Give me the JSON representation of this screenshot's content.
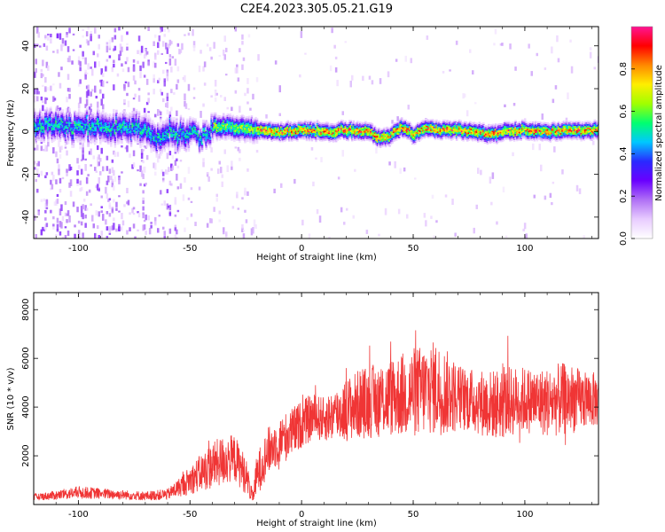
{
  "title": "C2E4.2023.305.05.21.G19",
  "colors": {
    "snr_line": "#f03535",
    "colormap": [
      "#ffffff",
      "#e8ccff",
      "#b070f5",
      "#6a00ff",
      "#2a2aff",
      "#00c8ff",
      "#00ff70",
      "#a0ff00",
      "#ffee00",
      "#ff8800",
      "#ff0000",
      "#ff1493"
    ]
  },
  "chart_data": [
    {
      "type": "heatmap",
      "title": "",
      "xlabel": "Height of straight line (km)",
      "ylabel": "Frequency (Hz)",
      "xlim": [
        -120,
        133
      ],
      "ylim": [
        -50,
        49
      ],
      "x_ticks": [
        -100,
        -50,
        0,
        50,
        100
      ],
      "y_ticks": [
        -40,
        -20,
        0,
        20,
        40
      ],
      "colorbar": {
        "label": "Normalized spectral amplitude",
        "range": [
          0,
          1
        ],
        "ticks": [
          0.0,
          0.2,
          0.4,
          0.6,
          0.8
        ]
      },
      "ridge": {
        "description_points_x": [
          -120,
          -100,
          -80,
          -70,
          -65,
          -60,
          -55,
          -50,
          -45,
          -40,
          -30,
          -20,
          -10,
          0,
          10,
          20,
          30,
          35,
          40,
          45,
          50,
          55,
          60,
          70,
          80,
          85,
          90,
          100,
          110,
          120,
          133
        ],
        "frequency_hz": [
          3,
          3,
          2,
          1,
          -4,
          2,
          -2,
          1,
          -3,
          3,
          2,
          1,
          0,
          1,
          0,
          1,
          0,
          -3,
          -1,
          2,
          -1,
          2,
          1,
          1,
          0,
          -1,
          0,
          1,
          0,
          1,
          1
        ]
      }
    },
    {
      "type": "line",
      "title": "",
      "xlabel": "Height of straight line (km)",
      "ylabel": "SNR (10 * v/v)",
      "xlim": [
        -120,
        133
      ],
      "ylim": [
        0,
        8700
      ],
      "x_ticks": [
        -100,
        -50,
        0,
        50,
        100
      ],
      "y_ticks": [
        2000,
        4000,
        6000,
        8000
      ],
      "envelope_x": [
        -120,
        -110,
        -100,
        -90,
        -80,
        -70,
        -60,
        -55,
        -50,
        -45,
        -40,
        -35,
        -30,
        -25,
        -22,
        -20,
        -15,
        -10,
        -5,
        0,
        5,
        10,
        15,
        20,
        25,
        30,
        35,
        40,
        45,
        50,
        55,
        60,
        65,
        70,
        75,
        80,
        85,
        90,
        95,
        100,
        105,
        110,
        115,
        120,
        125,
        133
      ],
      "envelope_mean": [
        300,
        380,
        500,
        450,
        400,
        350,
        420,
        700,
        1000,
        1300,
        1600,
        1800,
        1900,
        1200,
        300,
        1200,
        2200,
        2600,
        2900,
        3300,
        3600,
        3500,
        3700,
        3900,
        4100,
        4200,
        4300,
        4400,
        4500,
        4600,
        4700,
        4800,
        4600,
        4400,
        4300,
        4200,
        4100,
        4150,
        4250,
        4300,
        4250,
        4200,
        4300,
        4350,
        4300,
        4300
      ],
      "envelope_spread": [
        200,
        300,
        400,
        350,
        300,
        300,
        350,
        600,
        900,
        1200,
        1500,
        1600,
        1500,
        1200,
        400,
        1400,
        1500,
        1500,
        1600,
        1500,
        1500,
        1400,
        1700,
        2000,
        2200,
        2300,
        2400,
        2500,
        2700,
        2900,
        2900,
        3000,
        2700,
        2200,
        2000,
        2100,
        2200,
        2300,
        2200,
        2100,
        2100,
        2200,
        2300,
        2300,
        1900,
        1700
      ]
    }
  ]
}
